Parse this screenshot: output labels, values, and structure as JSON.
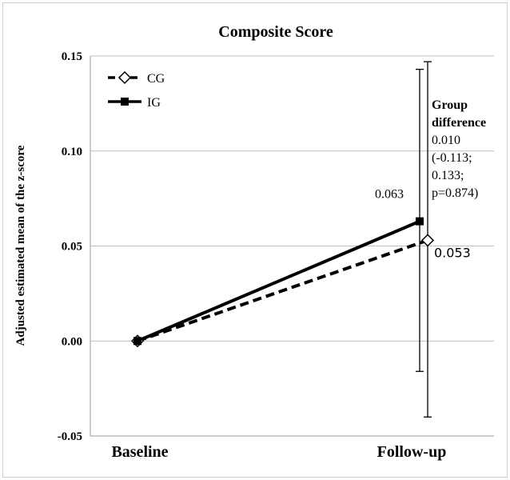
{
  "chart_data": {
    "type": "line",
    "title": "Composite Score",
    "xlabel": "",
    "ylabel": "Adjusted estimated mean of the z-score",
    "categories": [
      "Baseline",
      "Follow-up"
    ],
    "ylim": [
      -0.05,
      0.15
    ],
    "yticks": [
      "0.15",
      "0.10",
      "0.05",
      "0.00",
      "-0.05"
    ],
    "grid": "horizontal",
    "legend_position": "top-left",
    "series": [
      {
        "name": "CG",
        "values": [
          0.0,
          0.053
        ],
        "error": [
          null,
          [
            -0.04,
            0.147
          ]
        ],
        "line": "dashed",
        "marker": "open-diamond",
        "color": "#000000",
        "value_label": "0.053"
      },
      {
        "name": "IG",
        "values": [
          0.0,
          0.063
        ],
        "error": [
          null,
          [
            -0.016,
            0.143
          ]
        ],
        "line": "solid",
        "marker": "filled-square",
        "color": "#000000",
        "value_label": "0.063"
      }
    ],
    "annotation": {
      "heading_lines": [
        "Group",
        "difference"
      ],
      "body_lines": [
        "0.010",
        "(-0.113;",
        "0.133;",
        "p=0.874)"
      ]
    }
  }
}
